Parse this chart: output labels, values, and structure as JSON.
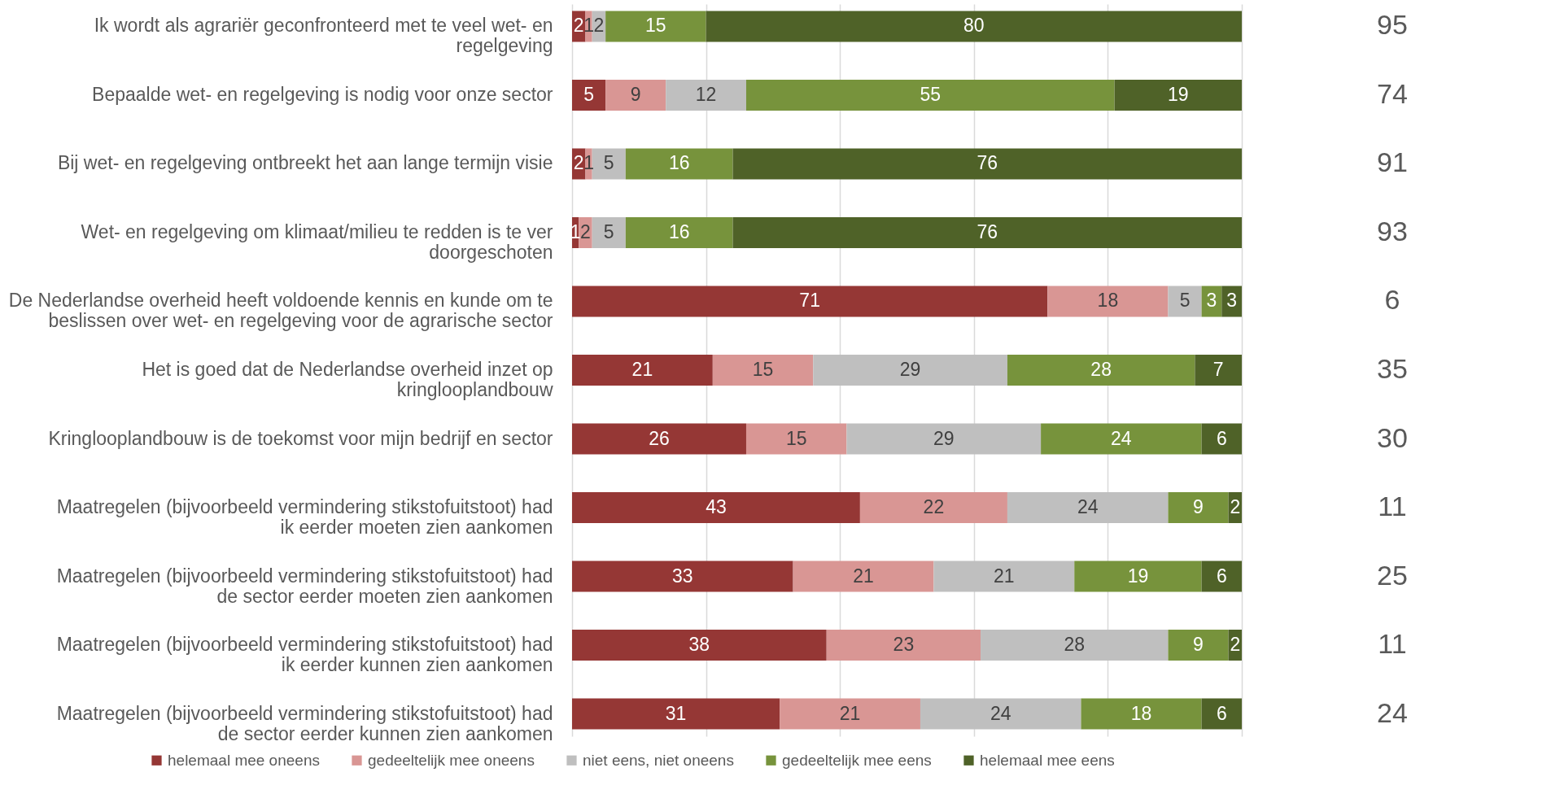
{
  "chart_data": {
    "type": "bar",
    "orientation": "horizontal",
    "stacked": true,
    "data_labels": true,
    "grid": "x",
    "tick_labels": "y",
    "legend": "bottom",
    "categories": [
      "Ik wordt als agrariër geconfronteerd met te veel wet- en regelgeving",
      "Bepaalde wet- en regelgeving is nodig voor onze sector",
      "Bij wet- en regelgeving ontbreekt het aan lange termijn visie",
      "Wet- en regelgeving om klimaat/milieu te redden is te ver doorgeschoten",
      "De Nederlandse overheid heeft voldoende kennis en kunde om te beslissen over wet- en regelgeving voor de agrarische sector",
      "Het is goed dat de Nederlandse overheid inzet op kringlooplandbouw",
      "Kringlooplandbouw is de toekomst voor mijn bedrijf en sector",
      "Maatregelen (bijvoorbeeld vermindering stikstofuitstoot) had ik eerder moeten zien aankomen",
      "Maatregelen (bijvoorbeeld vermindering stikstofuitstoot) had de sector eerder moeten zien aankomen",
      "Maatregelen (bijvoorbeeld vermindering stikstofuitstoot) had ik eerder kunnen zien aankomen",
      "Maatregelen (bijvoorbeeld vermindering stikstofuitstoot) had de sector eerder kunnen zien aankomen"
    ],
    "xlim": [
      0,
      100
    ],
    "xticks": [
      {
        "value": 0,
        "label": null
      },
      {
        "value": 20,
        "label": null
      },
      {
        "value": 40,
        "label": null
      },
      {
        "value": 60,
        "label": null
      },
      {
        "value": 80,
        "label": null
      },
      {
        "value": 100,
        "label": null
      }
    ],
    "series": [
      {
        "name": "helemaal mee oneens",
        "color": "#953735",
        "values": [
          2,
          5,
          2,
          1,
          71,
          21,
          26,
          43,
          33,
          38,
          31
        ]
      },
      {
        "name": "gedeeltelijk mee oneens",
        "color": "#d99694",
        "values": [
          1,
          9,
          1,
          2,
          18,
          15,
          15,
          22,
          21,
          23,
          21
        ]
      },
      {
        "name": "niet eens, niet oneens",
        "color": "#bfbfbf",
        "values": [
          2,
          12,
          5,
          5,
          5,
          29,
          29,
          24,
          21,
          28,
          24
        ]
      },
      {
        "name": "gedeeltelijk mee eens",
        "color": "#77933c",
        "values": [
          15,
          55,
          16,
          16,
          3,
          28,
          24,
          9,
          19,
          9,
          18
        ]
      },
      {
        "name": "helemaal mee eens",
        "color": "#4f6228",
        "values": [
          80,
          19,
          76,
          76,
          3,
          7,
          6,
          2,
          6,
          2,
          6
        ]
      }
    ],
    "annotations": [
      "95",
      "74",
      "91",
      "93",
      "6",
      "35",
      "30",
      "11",
      "25",
      "11",
      "24"
    ]
  }
}
